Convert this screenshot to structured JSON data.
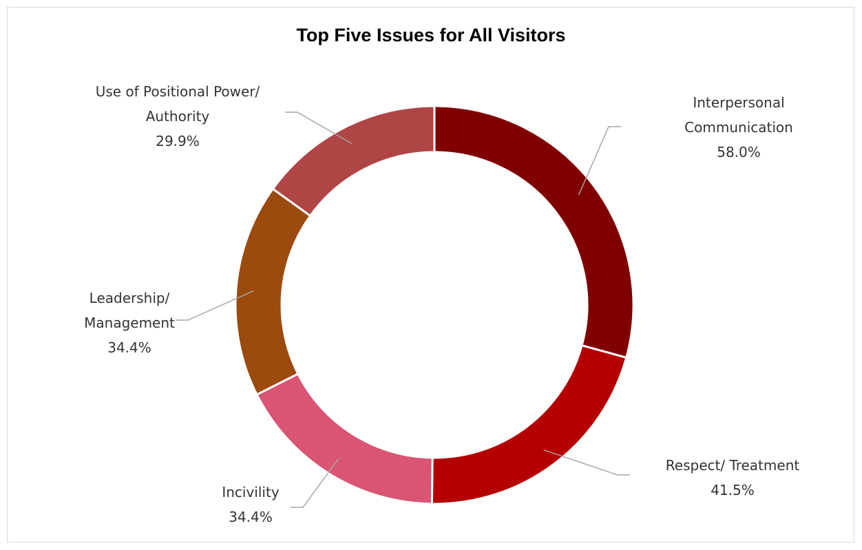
{
  "chart_data": {
    "type": "pie",
    "variant": "doughnut",
    "title": "Top Five Issues for All Visitors",
    "slices": [
      {
        "name_lines": [
          "Interpersonal",
          "Communication"
        ],
        "value_label": "58.0%",
        "value": 58.0,
        "color": "#800000"
      },
      {
        "name_lines": [
          "Respect/ Treatment"
        ],
        "value_label": "41.5%",
        "value": 41.5,
        "color": "#b50000"
      },
      {
        "name_lines": [
          "Incivility"
        ],
        "value_label": "34.4%",
        "value": 34.4,
        "color": "#d95573"
      },
      {
        "name_lines": [
          "Leadership/",
          "Management"
        ],
        "value_label": "34.4%",
        "value": 34.4,
        "color": "#9c4a0d"
      },
      {
        "name_lines": [
          "Use of Positional Power/",
          "Authority"
        ],
        "value_label": "29.9%",
        "value": 29.9,
        "color": "#b04545"
      }
    ],
    "legend": "none",
    "leader_line_color": "#a6a6a6"
  }
}
